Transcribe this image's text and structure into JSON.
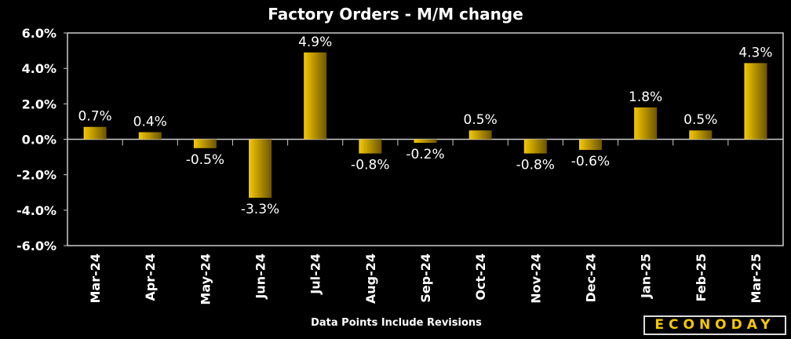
{
  "chart_data": {
    "type": "bar",
    "title": "Factory Orders - M/M change",
    "categories": [
      "Mar-24",
      "Apr-24",
      "May-24",
      "Jun-24",
      "Jul-24",
      "Aug-24",
      "Sep-24",
      "Oct-24",
      "Nov-24",
      "Dec-24",
      "Jan-25",
      "Feb-25",
      "Mar-25"
    ],
    "values": [
      0.7,
      0.4,
      -0.5,
      -3.3,
      4.9,
      -0.8,
      -0.2,
      0.5,
      -0.8,
      -0.6,
      1.8,
      0.5,
      4.3
    ],
    "data_labels": [
      "0.7%",
      "0.4%",
      "-0.5%",
      "-3.3%",
      "4.9%",
      "-0.8%",
      "-0.2%",
      "0.5%",
      "-0.8%",
      "-0.6%",
      "1.8%",
      "0.5%",
      "4.3%"
    ],
    "yticks": [
      6,
      4,
      2,
      0,
      -2,
      -4,
      -6
    ],
    "ytick_labels": [
      "6.0%",
      "4.0%",
      "2.0%",
      "0.0%",
      "-2.0%",
      "-4.0%",
      "-6.0%"
    ],
    "ylim": [
      -6,
      6
    ],
    "xlabel": "",
    "ylabel": "",
    "grid": false,
    "bar_color_light": "#f5c800",
    "bar_color_dark": "#6b5500"
  },
  "footnote": "Data Points Include Revisions",
  "logo": "ECONODAY"
}
